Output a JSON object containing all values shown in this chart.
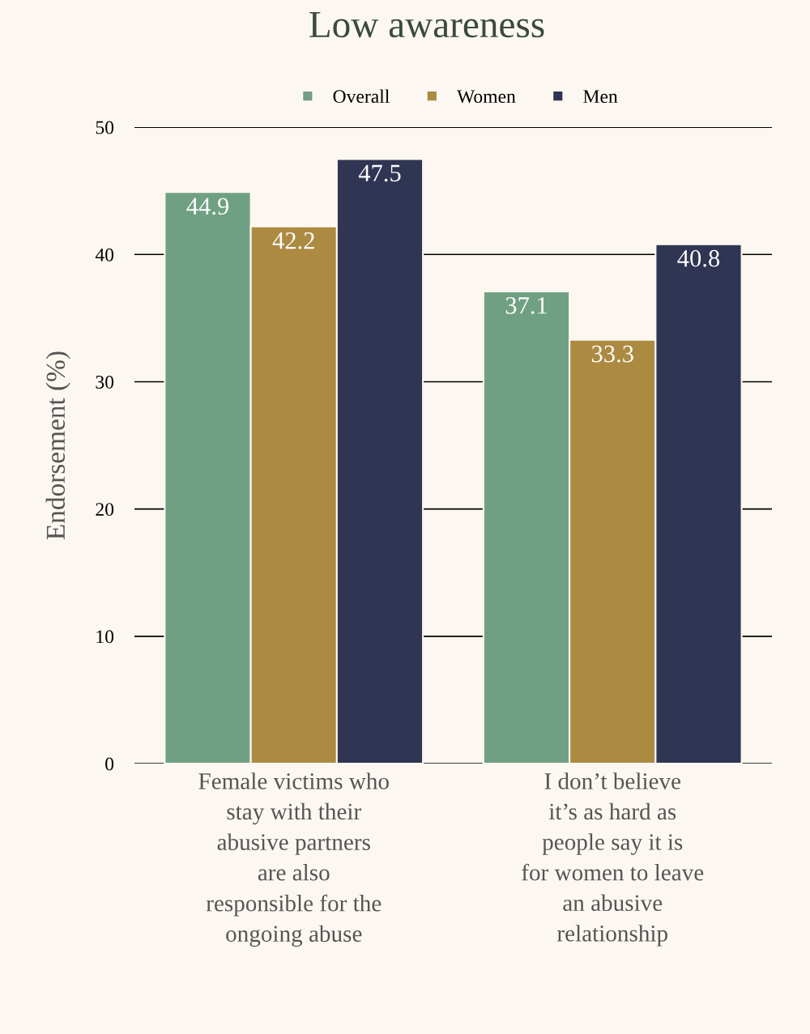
{
  "chart_data": {
    "type": "bar",
    "title": "Low awareness",
    "ylabel": "Endorsement (%)",
    "categories": [
      "Female victims who stay with their abusive partners are also responsible for the ongoing abuse",
      "I don’t believe it’s as hard as people say it is for women to leave an abusive relationship"
    ],
    "series": [
      {
        "name": "Overall",
        "color": "#70a083",
        "values": [
          44.9,
          37.1
        ]
      },
      {
        "name": "Women",
        "color": "#ad8a42",
        "values": [
          42.2,
          33.3
        ]
      },
      {
        "name": "Men",
        "color": "#303553",
        "values": [
          47.5,
          40.8
        ]
      }
    ],
    "ylim": [
      0,
      50
    ],
    "yticks": [
      0,
      10,
      20,
      30,
      40,
      50
    ],
    "grid": "y",
    "legend": "top",
    "data_labels": true
  }
}
